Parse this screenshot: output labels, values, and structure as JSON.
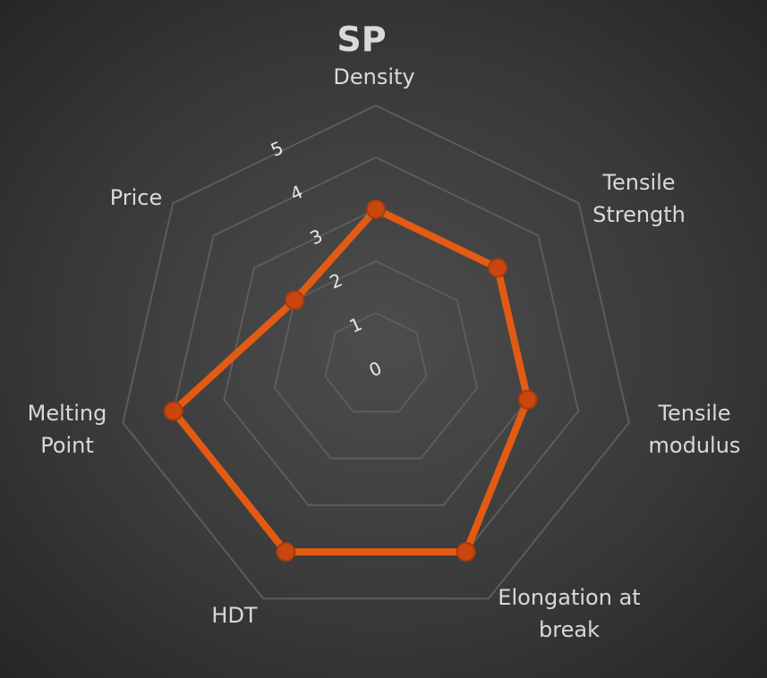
{
  "chart_data": {
    "type": "radar",
    "title": "SP",
    "categories": [
      "Density",
      "Tensile Strength",
      "Tensile modulus",
      "Elongation at break",
      "HDT",
      "Melting Point",
      "Price"
    ],
    "series": [
      {
        "name": "SP",
        "color": "#e35b13",
        "values": [
          3,
          3,
          3,
          4,
          4,
          4,
          2
        ]
      }
    ],
    "ylim": [
      0,
      5
    ],
    "yticks": [
      0,
      1,
      2,
      3,
      4,
      5
    ],
    "grid": true
  }
}
